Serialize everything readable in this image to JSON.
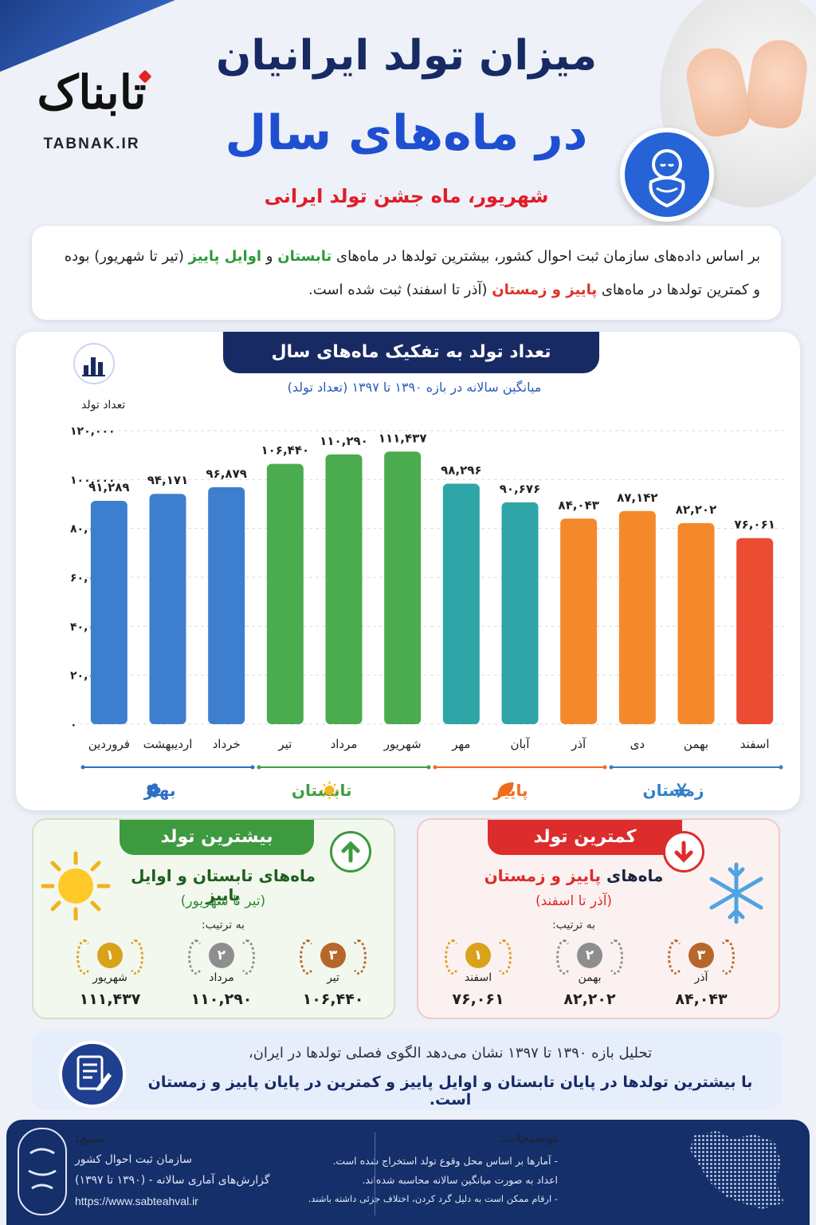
{
  "header": {
    "logo_fa": "تابناک",
    "logo_en": "TABNAK.IR",
    "title_line1": "میزان تولد ایرانیان",
    "title_line2": "در ماه‌های سال",
    "subtitle": "شهریور، ماه جشن تولد ایرانی"
  },
  "intro": {
    "p1": "بر اساس داده‌های سازمان ثبت احوال کشور، بیشترین تولدها در ماه‌های ",
    "h1": "تابستان",
    "p2": " و ",
    "h2": "اوایل پاییز",
    "p3": " (تیر تا شهریور) بوده",
    "p4": "و کمترین تولدها در ماه‌های ",
    "h3": "پاییز و زمستان",
    "p5": " (آذر تا اسفند) ثبت شده است."
  },
  "chart_section": {
    "title": "تعداد تولد به تفکیک ماه‌های سال",
    "subtitle": "میانگین سالانه در بازه ۱۳۹۰ تا ۱۳۹۷ (تعداد تولد)"
  },
  "chart_data": {
    "type": "bar",
    "ylabel": "تعداد تولد",
    "ylim": [
      0,
      120000
    ],
    "yticks": [
      0,
      20000,
      40000,
      60000,
      80000,
      100000,
      120000
    ],
    "ytick_labels": [
      "۰",
      "۲۰,۰۰۰",
      "۴۰,۰۰۰",
      "۶۰,۰۰۰",
      "۸۰,۰۰۰",
      "۱۰۰,۰۰۰",
      "۱۲۰,۰۰۰"
    ],
    "grid": true,
    "categories": [
      "فروردین",
      "اردیبهشت",
      "خرداد",
      "تیر",
      "مرداد",
      "شهریور",
      "مهر",
      "آبان",
      "آذر",
      "دی",
      "بهمن",
      "اسفند"
    ],
    "values": [
      91289,
      94171,
      96879,
      106440,
      110290,
      111437,
      98296,
      90676,
      84043,
      87142,
      82202,
      76061
    ],
    "value_labels": [
      "۹۱,۲۸۹",
      "۹۴,۱۷۱",
      "۹۶,۸۷۹",
      "۱۰۶,۴۴۰",
      "۱۱۰,۲۹۰",
      "۱۱۱,۴۳۷",
      "۹۸,۲۹۶",
      "۹۰,۶۷۶",
      "۸۴,۰۴۳",
      "۸۷,۱۴۲",
      "۸۲,۲۰۲",
      "۷۶,۰۶۱"
    ],
    "bar_colors": [
      "#3d7fce",
      "#3d7fce",
      "#3d7fce",
      "#4aac4e",
      "#4aac4e",
      "#4aac4e",
      "#2ea5a6",
      "#2ea5a6",
      "#f4892c",
      "#f4892c",
      "#f4892c",
      "#eb4d33"
    ],
    "seasons": [
      {
        "name": "بهار",
        "color": "#2f6fc4",
        "icon": "flower-icon"
      },
      {
        "name": "تابستان",
        "color": "#3f9f42",
        "icon": "sun-icon"
      },
      {
        "name": "پاییز",
        "color": "#f06c1c",
        "icon": "leaf-icon"
      },
      {
        "name": "زمستان",
        "color": "#2f7fc9",
        "icon": "snowflake-icon"
      }
    ]
  },
  "highest": {
    "tab": "بیشترین تولد",
    "heading": "ماه‌های تابستان و اوایل پاییز",
    "range": "(تیر تا شهریور)",
    "order_label": "به ترتیب:",
    "ranks": [
      {
        "rank": "۱",
        "month": "شهریور",
        "value": "۱۱۱,۴۳۷",
        "color": "#d9a21b"
      },
      {
        "rank": "۲",
        "month": "مرداد",
        "value": "۱۱۰,۲۹۰",
        "color": "#8e8e8e"
      },
      {
        "rank": "۳",
        "month": "تیر",
        "value": "۱۰۶,۴۴۰",
        "color": "#b6672c"
      }
    ]
  },
  "lowest": {
    "tab": "کمترین تولد",
    "heading_a": "ماه‌های ",
    "heading_b": "پاییز و زمستان",
    "range": "(آذر تا اسفند)",
    "order_label": "به ترتیب:",
    "ranks": [
      {
        "rank": "۱",
        "month": "اسفند",
        "value": "۷۶,۰۶۱",
        "color": "#d9a21b"
      },
      {
        "rank": "۲",
        "month": "بهمن",
        "value": "۸۲,۲۰۲",
        "color": "#8e8e8e"
      },
      {
        "rank": "۳",
        "month": "آذر",
        "value": "۸۴,۰۴۳",
        "color": "#b6672c"
      }
    ]
  },
  "conclusion": {
    "line1": "تحلیل بازه ۱۳۹۰ تا ۱۳۹۷ نشان می‌دهد الگوی فصلی تولدها در ایران،",
    "line2": "با بیشترین تولدها در پایان تابستان و اوایل پاییز و کمترین در پایان پاییز و زمستان است."
  },
  "footer": {
    "notes_title": "توضیحات:",
    "notes": [
      "- آمارها بر اساس محل وقوع تولد استخراج شده است.",
      "اعداد به صورت میانگین سالانه محاسبه شده‌اند.",
      "- ارقام ممکن است به دلیل گرد کردن، اختلاف جزئی داشته باشند."
    ],
    "source_title": "منبع:",
    "source_lines": [
      "سازمان ثبت احوال کشور",
      "گزارش‌های آماری سالانه - (۱۳۹۰ تا ۱۳۹۷)",
      "https://www.sabteahval.ir"
    ]
  }
}
